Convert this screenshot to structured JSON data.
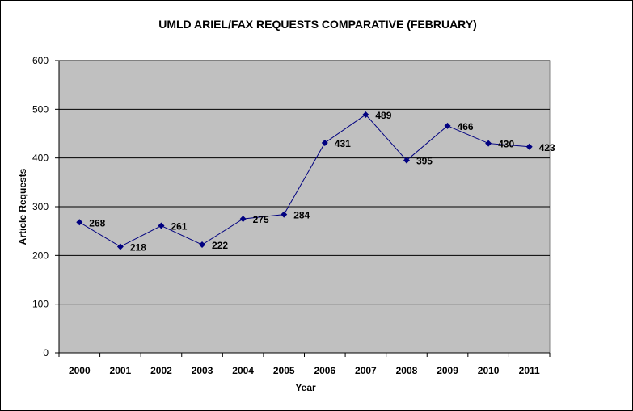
{
  "chart_data": {
    "type": "line",
    "title": "UMLD ARIEL/FAX REQUESTS COMPARATIVE (FEBRUARY)",
    "xlabel": "Year",
    "ylabel": "Article Requests",
    "categories": [
      "2000",
      "2001",
      "2002",
      "2003",
      "2004",
      "2005",
      "2006",
      "2007",
      "2008",
      "2009",
      "2010",
      "2011"
    ],
    "values": [
      268,
      218,
      261,
      222,
      275,
      284,
      431,
      489,
      395,
      466,
      430,
      423
    ],
    "ylim": [
      0,
      600
    ],
    "yticks": [
      "0",
      "100",
      "200",
      "300",
      "400",
      "500",
      "600"
    ],
    "grid": true,
    "legend": "none",
    "colors": {
      "line": "#000080",
      "plot_bg": "#c0c0c0"
    }
  }
}
